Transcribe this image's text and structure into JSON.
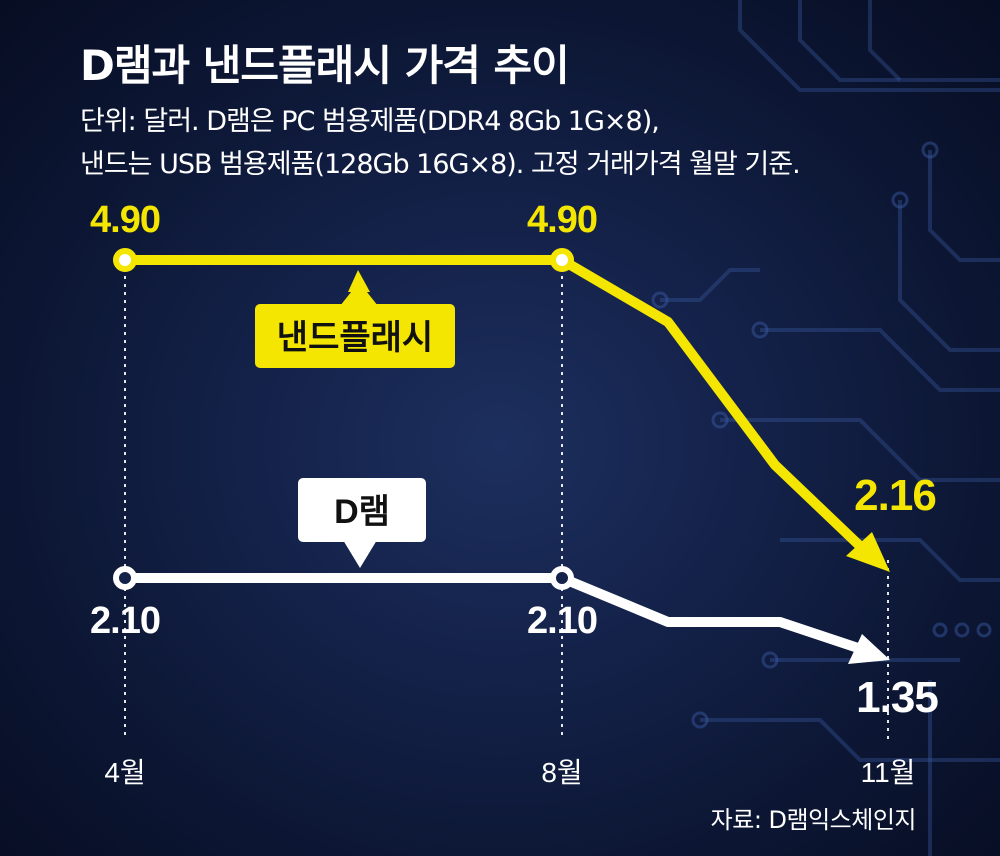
{
  "title": "D램과 낸드플래시 가격 추이",
  "subtitle_lines": [
    "단위: 달러. D램은 PC 범용제품(DDR4 8Gb 1G×8),",
    "낸드는 USB 범용제품(128Gb 16G×8). 고정 거래가격 월말 기준."
  ],
  "source": "자료: D램익스체인지",
  "colors": {
    "nand": "#f4e600",
    "dram": "#ffffff",
    "background": "#0f1b3d"
  },
  "chart_data": {
    "type": "line",
    "x": [
      "4월",
      "8월",
      "11월"
    ],
    "series": [
      {
        "name": "낸드플래시",
        "values": [
          4.9,
          4.9,
          2.16
        ],
        "labels": [
          "4.90",
          "4.90",
          "2.16"
        ]
      },
      {
        "name": "D램",
        "values": [
          2.1,
          2.1,
          1.35
        ],
        "labels": [
          "2.10",
          "2.10",
          "1.35"
        ]
      }
    ],
    "grid": false,
    "legend": "inline callout labels"
  }
}
